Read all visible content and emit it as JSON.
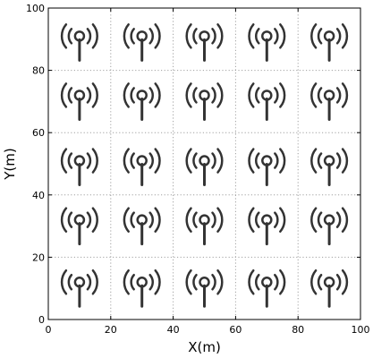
{
  "chart_data": {
    "type": "scatter",
    "xlabel": "X(m)",
    "ylabel": "Y(m)",
    "xlim": [
      0,
      100
    ],
    "ylim": [
      0,
      100
    ],
    "xticks": [
      0,
      20,
      40,
      60,
      80,
      100
    ],
    "yticks": [
      0,
      20,
      40,
      60,
      80,
      100
    ],
    "grid": true,
    "marker": "antenna-icon",
    "marker_color": "#333333",
    "points": [
      {
        "x": 10,
        "y": 12
      },
      {
        "x": 30,
        "y": 12
      },
      {
        "x": 50,
        "y": 12
      },
      {
        "x": 70,
        "y": 12
      },
      {
        "x": 90,
        "y": 12
      },
      {
        "x": 10,
        "y": 32
      },
      {
        "x": 30,
        "y": 32
      },
      {
        "x": 50,
        "y": 32
      },
      {
        "x": 70,
        "y": 32
      },
      {
        "x": 90,
        "y": 32
      },
      {
        "x": 10,
        "y": 51
      },
      {
        "x": 30,
        "y": 51
      },
      {
        "x": 50,
        "y": 51
      },
      {
        "x": 70,
        "y": 51
      },
      {
        "x": 90,
        "y": 51
      },
      {
        "x": 10,
        "y": 72
      },
      {
        "x": 30,
        "y": 72
      },
      {
        "x": 50,
        "y": 72
      },
      {
        "x": 70,
        "y": 72
      },
      {
        "x": 90,
        "y": 72
      },
      {
        "x": 10,
        "y": 91
      },
      {
        "x": 30,
        "y": 91
      },
      {
        "x": 50,
        "y": 91
      },
      {
        "x": 70,
        "y": 91
      },
      {
        "x": 90,
        "y": 91
      }
    ]
  }
}
